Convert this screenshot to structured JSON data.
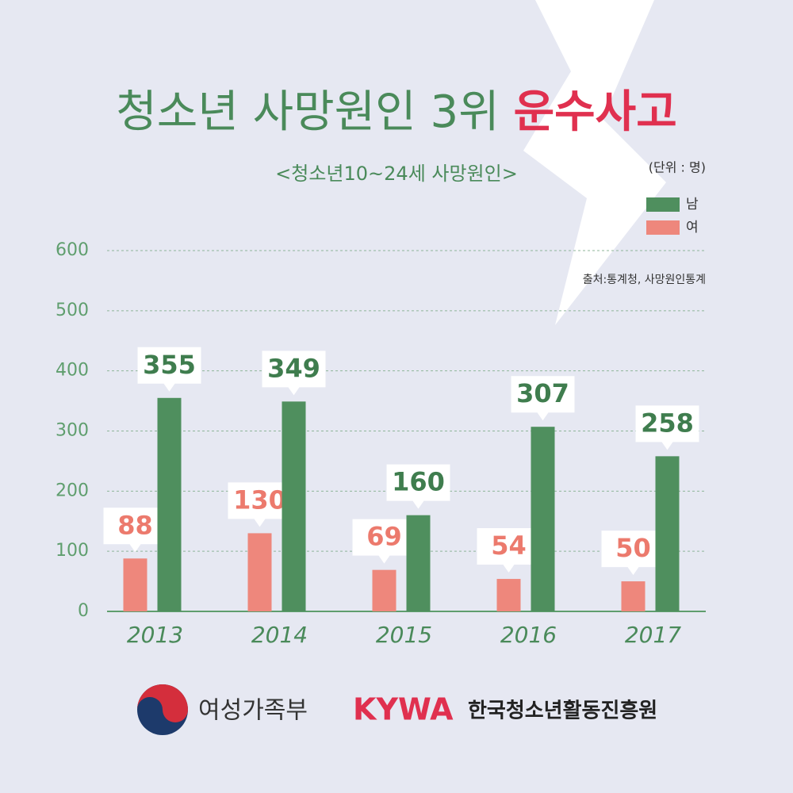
{
  "chart_data": {
    "type": "bar",
    "title": [
      "청소년 사망원인 3위",
      "운수사고"
    ],
    "subtitle": "<청소년10~24세 사망원인>",
    "unit": "(단위 : 명)",
    "source": "출처:통계청, 사망원인통계",
    "categories": [
      "2013",
      "2014",
      "2015",
      "2016",
      "2017"
    ],
    "series": [
      {
        "name": "여",
        "color": "#ee877c",
        "values": [
          88,
          130,
          69,
          54,
          50
        ]
      },
      {
        "name": "남",
        "color": "#4f8f5e",
        "values": [
          355,
          349,
          160,
          307,
          258
        ]
      }
    ],
    "ylim": [
      0,
      600
    ],
    "yticks": [
      0,
      100,
      200,
      300,
      400,
      500,
      600
    ],
    "grid": true,
    "logos": [
      "여성가족부",
      "KYWA",
      "한국청소년활동진흥원"
    ]
  }
}
